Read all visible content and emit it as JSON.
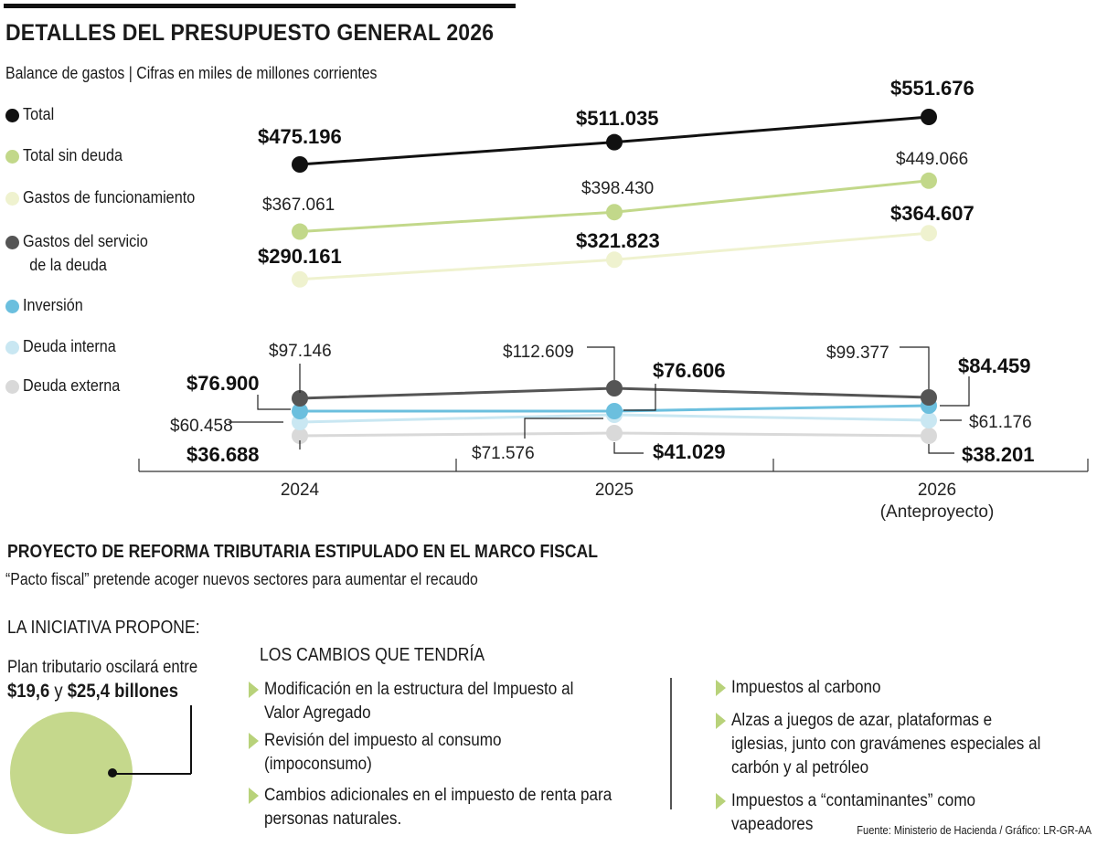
{
  "title": "DETALLES DEL PRESUPUESTO GENERAL 2026",
  "subtitle": "Balance de gastos | Cifras en miles de millones corrientes",
  "legend": [
    {
      "label": "Total",
      "color": "#111111"
    },
    {
      "label": "Total sin deuda",
      "color": "#c2d88a"
    },
    {
      "label": "Gastos de funcionamiento",
      "color": "#eff2cf"
    },
    {
      "label": "Gastos del servicio de la deuda",
      "line1": "Gastos del servicio",
      "line2": "de la deuda",
      "color": "#555555"
    },
    {
      "label": "Inversión",
      "color": "#6bbfde"
    },
    {
      "label": "Deuda interna",
      "color": "#c9e7f2"
    },
    {
      "label": "Deuda externa",
      "color": "#d9d9d9"
    }
  ],
  "chart_data": {
    "type": "line",
    "x": [
      "2024",
      "2025",
      "2026"
    ],
    "x_tick_labels": [
      "2024",
      "2025",
      "2026\n(Anteproyecto)"
    ],
    "x_tick_sublabel": "(Anteproyecto)",
    "series": [
      {
        "name": "Total",
        "color": "#111111",
        "values": [
          475196,
          511035,
          551676
        ],
        "labels": [
          "$475.196",
          "$511.035",
          "$551.676"
        ]
      },
      {
        "name": "Total sin deuda",
        "color": "#c2d88a",
        "values": [
          367061,
          398430,
          449066
        ],
        "labels": [
          "$367.061",
          "$398.430",
          "$449.066"
        ]
      },
      {
        "name": "Gastos de funcionamiento",
        "color": "#eff2cf",
        "values": [
          290161,
          321823,
          364607
        ],
        "labels": [
          "$290.161",
          "$321.823",
          "$364.607"
        ]
      },
      {
        "name": "Gastos del servicio de la deuda",
        "color": "#555555",
        "values": [
          97146,
          112609,
          99377
        ],
        "labels": [
          "$97.146",
          "$112.609",
          "$99.377"
        ]
      },
      {
        "name": "Inversión",
        "color": "#6bbfde",
        "values": [
          76900,
          76606,
          84459
        ],
        "labels": [
          "$76.900",
          "$76.606",
          "$84.459"
        ]
      },
      {
        "name": "Deuda interna",
        "color": "#c9e7f2",
        "values": [
          60458,
          71576,
          61176
        ],
        "labels": [
          "$60.458",
          "$71.576",
          "$61.176"
        ]
      },
      {
        "name": "Deuda externa",
        "color": "#d9d9d9",
        "values": [
          36688,
          41029,
          38201
        ],
        "labels": [
          "$36.688",
          "$41.029",
          "$38.201"
        ]
      }
    ]
  },
  "reforma": {
    "title": "PROYECTO DE REFORMA TRIBUTARIA ESTIPULADO EN EL MARCO FISCAL",
    "subtitle": "“Pacto fiscal” pretende acoger nuevos sectores para aumentar el recaudo",
    "propone": "LA INICIATIVA PROPONE:",
    "plan_line1": "Plan tributario oscilará entre",
    "plan_low": "$19,6",
    "plan_mid": " y ",
    "plan_high": "$25,4 billones",
    "cambios_title": "LOS CAMBIOS QUE TENDRÍA",
    "cambios_left": [
      "Modificación en la estructura del Impuesto al Valor Agregado",
      "Revisión del impuesto al consumo (impoconsumo)",
      "Cambios adicionales en el impuesto de renta para personas naturales."
    ],
    "cambios_right": [
      "Impuestos al carbono",
      "Alzas a juegos de azar, plataformas e iglesias, junto con gravámenes especiales al carbón y al petróleo",
      "Impuestos a “contaminantes” como vapeadores"
    ]
  },
  "source": "Fuente: Ministerio de Hacienda / Gráfico: LR-GR-AA"
}
